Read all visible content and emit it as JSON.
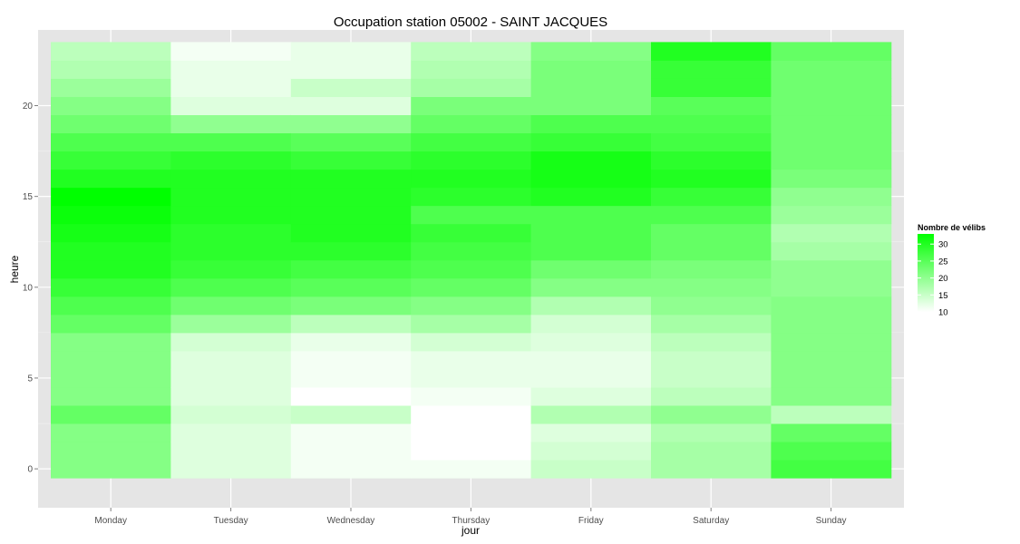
{
  "chart_data": {
    "type": "heatmap",
    "title": "Occupation station 05002 - SAINT JACQUES",
    "xlabel": "jour",
    "ylabel": "heure",
    "x_categories": [
      "Monday",
      "Tuesday",
      "Wednesday",
      "Thursday",
      "Friday",
      "Saturday",
      "Sunday"
    ],
    "y_ticks": [
      0,
      5,
      10,
      15,
      20
    ],
    "y_range": [
      -0.5,
      23.5
    ],
    "color_scale": {
      "low_color": "#ffffff",
      "high_color": "#00ff00",
      "min": 10,
      "max": 33,
      "legend_title": "Nombre de vélibs",
      "legend_ticks": [
        10,
        15,
        20,
        25,
        30
      ]
    },
    "grid": true,
    "legend_position": "right",
    "series": [
      {
        "values": [
          21,
          21,
          21,
          24,
          21,
          21,
          21,
          21,
          24,
          26,
          28,
          30,
          30,
          31,
          32,
          33,
          30,
          28,
          26,
          23,
          21,
          19,
          17,
          16
        ]
      },
      {
        "values": [
          13,
          13,
          13,
          14,
          13,
          13,
          13,
          14,
          19,
          23,
          26,
          28,
          29,
          29,
          30,
          30,
          30,
          29,
          26,
          20,
          13,
          12,
          12,
          11
        ]
      },
      {
        "values": [
          11,
          11,
          11,
          15,
          10,
          11,
          11,
          12,
          16,
          22,
          25,
          27,
          29,
          30,
          30,
          30,
          30,
          28,
          25,
          20,
          13,
          15,
          12,
          12
        ]
      },
      {
        "values": [
          11,
          10,
          10,
          10,
          11,
          12,
          12,
          14,
          18,
          21,
          24,
          26,
          27,
          28,
          26,
          29,
          30,
          29,
          27,
          24,
          22,
          18,
          17,
          16
        ]
      },
      {
        "values": [
          15,
          14,
          13,
          17,
          13,
          12,
          12,
          13,
          14,
          17,
          21,
          23,
          26,
          26,
          26,
          30,
          31,
          31,
          28,
          26,
          22,
          22,
          22,
          21
        ]
      },
      {
        "values": [
          18,
          18,
          17,
          20,
          16,
          15,
          15,
          16,
          18,
          20,
          21,
          22,
          24,
          24,
          26,
          28,
          30,
          29,
          27,
          26,
          25,
          28,
          28,
          30
        ]
      },
      {
        "values": [
          27,
          26,
          24,
          16,
          21,
          21,
          21,
          21,
          21,
          21,
          20,
          20,
          18,
          17,
          19,
          20,
          22,
          23,
          23,
          23,
          23,
          23,
          23,
          24
        ]
      }
    ]
  }
}
